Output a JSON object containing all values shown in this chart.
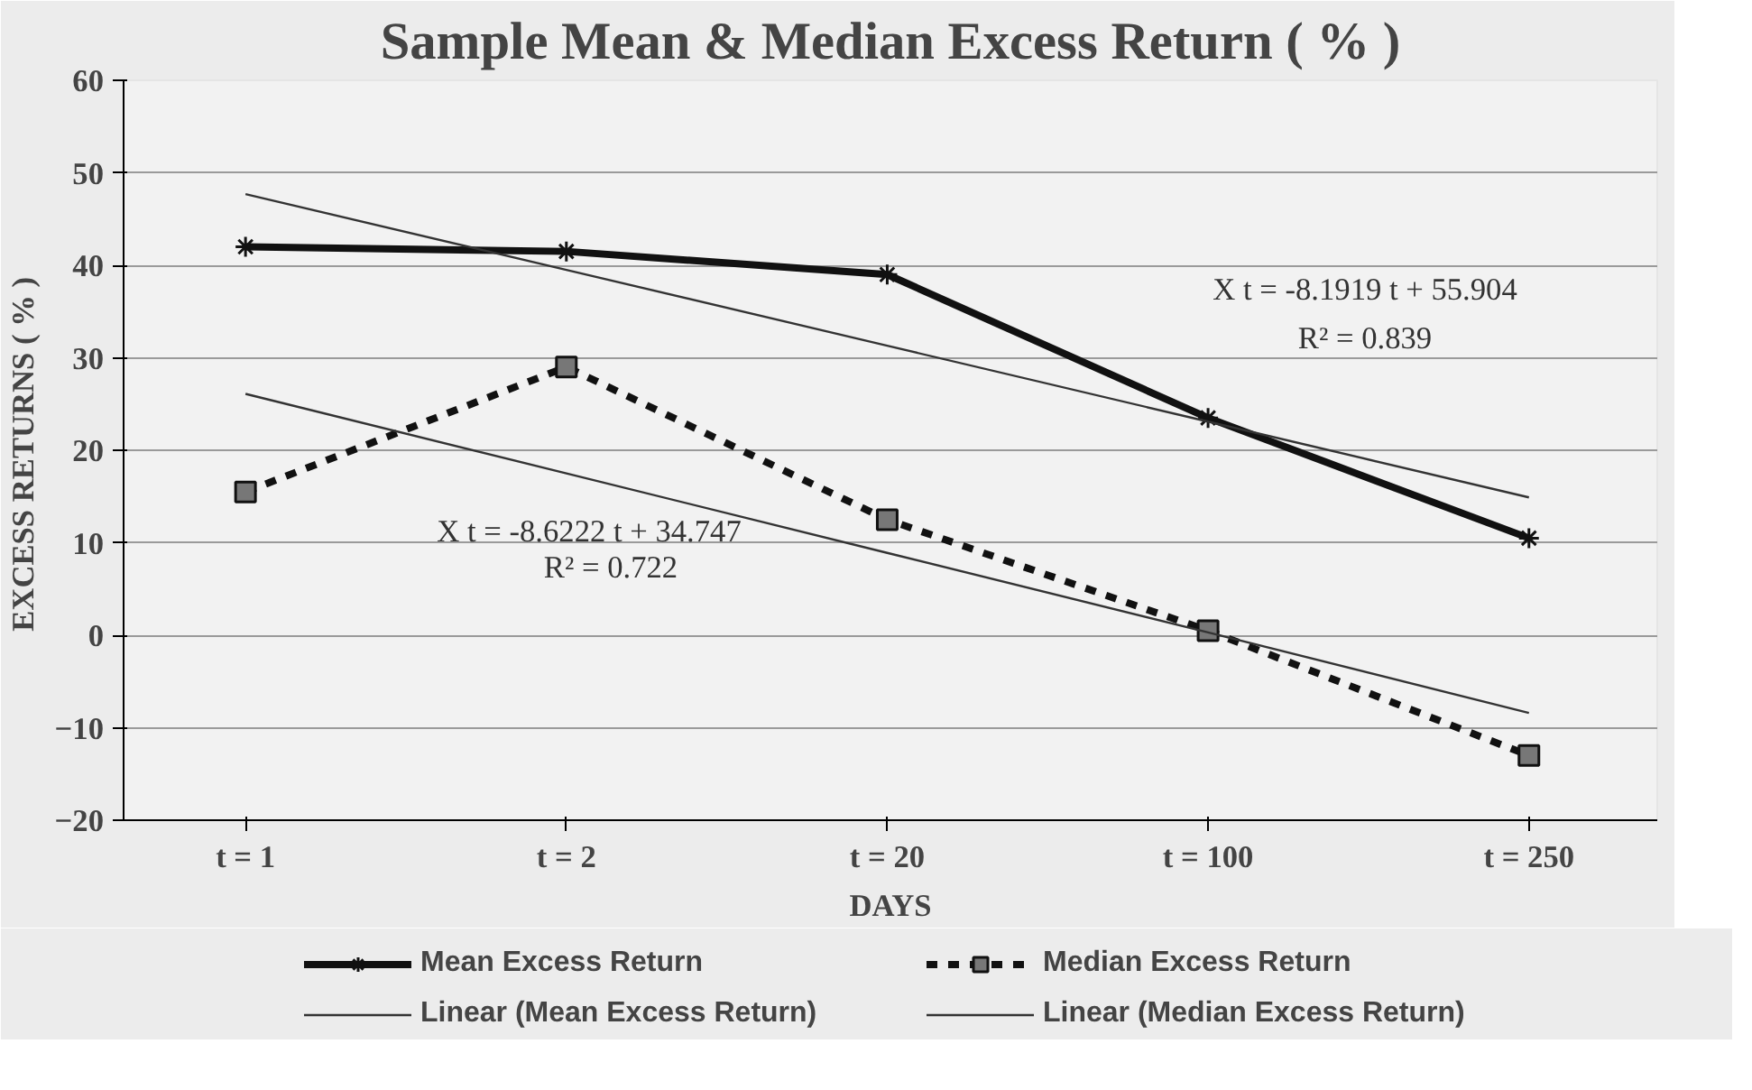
{
  "chart_data": {
    "type": "line",
    "title": "Sample Mean & Median Excess Return ( % )",
    "xlabel": "DAYS",
    "ylabel": "EXCESS  RETURNS ( % )",
    "categories": [
      "t = 1",
      "t = 2",
      "t = 20",
      "t = 100",
      "t = 250"
    ],
    "series": [
      {
        "name": "Mean Excess Return",
        "color": "#111111",
        "values": [
          42,
          41.5,
          39,
          23.5,
          10.5
        ],
        "marker": "cross",
        "line_style": "solid"
      },
      {
        "name": "Median Excess Return",
        "color": "#111111",
        "values": [
          15.5,
          29,
          12.5,
          0.5,
          -13
        ],
        "marker": "square",
        "line_style": "dashed"
      },
      {
        "name": "Linear (Mean Excess Return)",
        "color": "#333333",
        "values": [
          47.7,
          39.5,
          31.3,
          23.1,
          14.9
        ],
        "marker": "none",
        "line_style": "solid"
      },
      {
        "name": "Linear (Median Excess Return)",
        "color": "#333333",
        "values": [
          26.1,
          17.5,
          8.9,
          0.3,
          -8.4
        ],
        "marker": "none",
        "line_style": "solid"
      }
    ],
    "ylim": [
      -20,
      60
    ],
    "yticks": [
      -20,
      -10,
      0,
      10,
      20,
      30,
      40,
      50,
      60
    ],
    "grid": "y",
    "legend": "bottom",
    "annotations": [
      "X t = -8.1919 t + 55.904",
      "R² = 0.839",
      "X t = -8.6222 t + 34.747",
      "R² = 0.722"
    ]
  }
}
